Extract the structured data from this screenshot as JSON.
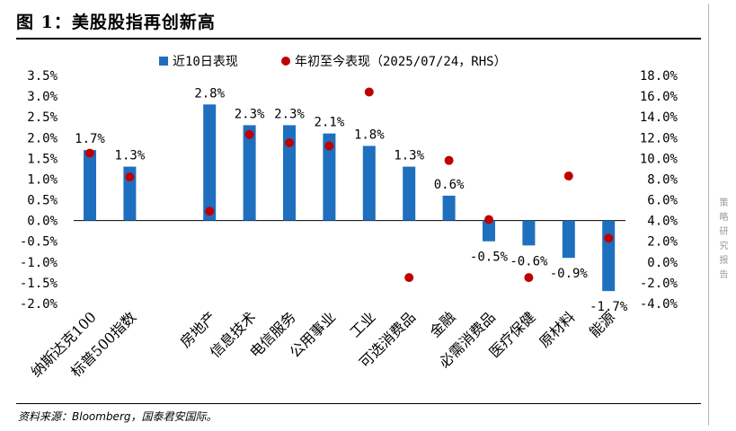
{
  "header": {
    "title": "图 1：美股股指再创新高"
  },
  "footer": {
    "source": "资料来源：Bloomberg，国泰君安国际。"
  },
  "sidebar": {
    "vertical_text": "策略研究报告"
  },
  "colors": {
    "bar": "#1f6fbf",
    "dot": "#c00000"
  },
  "chart_data": {
    "type": "bar",
    "title": "美股股指再创新高",
    "categories": [
      "纳斯达克100",
      "标普500指数",
      "",
      "房地产",
      "信息技术",
      "电信服务",
      "公用事业",
      "工业",
      "可选消费品",
      "金融",
      "必需消费品",
      "医疗保健",
      "原材料",
      "能源"
    ],
    "series": [
      {
        "name": "近10日表现",
        "kind": "bar",
        "axis": "left",
        "values": [
          1.7,
          1.3,
          null,
          2.8,
          2.3,
          2.3,
          2.1,
          1.8,
          1.3,
          0.6,
          -0.5,
          -0.6,
          -0.9,
          -1.7
        ],
        "labels": [
          "1.7%",
          "1.3%",
          "",
          "2.8%",
          "2.3%",
          "2.3%",
          "2.1%",
          "1.8%",
          "1.3%",
          "0.6%",
          "-0.5%",
          "-0.6%",
          "-0.9%",
          "-1.7%"
        ]
      },
      {
        "name": "年初至今表现（2025/07/24，RHS）",
        "kind": "scatter",
        "axis": "right",
        "values": [
          10.5,
          8.2,
          null,
          4.9,
          12.3,
          11.5,
          11.2,
          16.4,
          -1.5,
          9.8,
          4.1,
          -1.5,
          8.3,
          2.3
        ]
      }
    ],
    "ylim_left": [
      -2.0,
      3.5
    ],
    "yticks_left": [
      "3.5%",
      "3.0%",
      "2.5%",
      "2.0%",
      "1.5%",
      "1.0%",
      "0.5%",
      "0.0%",
      "-0.5%",
      "-1.0%",
      "-1.5%",
      "-2.0%"
    ],
    "ylim_right": [
      -4.0,
      18.0
    ],
    "yticks_right": [
      "18.0%",
      "16.0%",
      "14.0%",
      "12.0%",
      "10.0%",
      "8.0%",
      "6.0%",
      "4.0%",
      "2.0%",
      "0.0%",
      "-2.0%",
      "-4.0%"
    ],
    "legend": {
      "position": "top-center",
      "entries": [
        "近10日表现",
        "年初至今表现（2025/07/24，RHS）"
      ]
    }
  }
}
